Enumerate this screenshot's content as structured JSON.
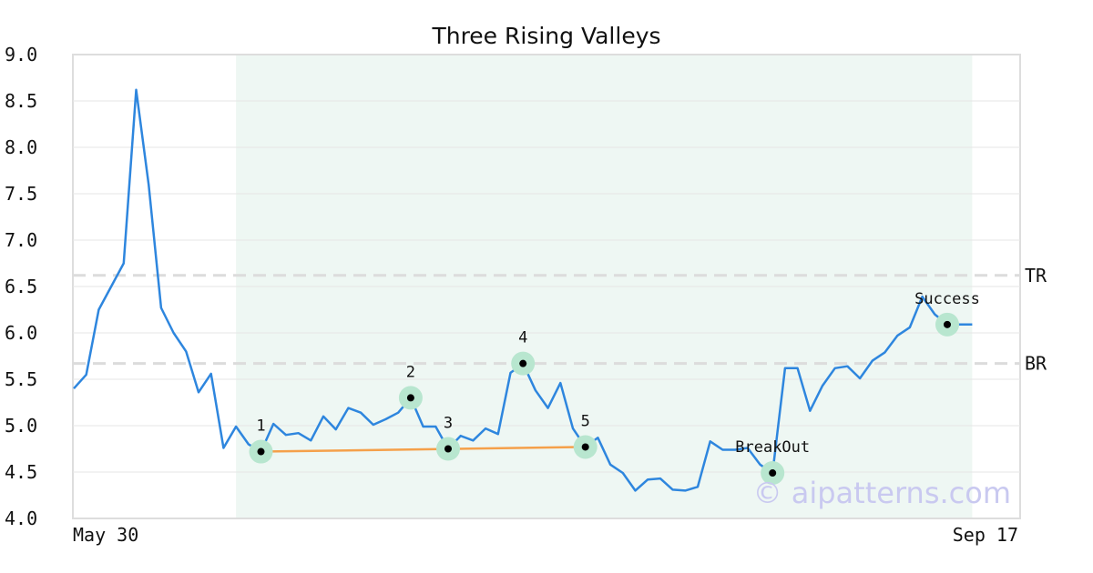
{
  "chart_data": {
    "type": "line",
    "title": "Three Rising Valleys",
    "xlabel": "",
    "ylabel": "",
    "ylim": [
      4.0,
      9.0
    ],
    "yticks": [
      "4.0",
      "4.5",
      "5.0",
      "5.5",
      "6.0",
      "6.5",
      "7.0",
      "7.5",
      "8.0",
      "8.5",
      "9.0"
    ],
    "xticks": [
      {
        "index": 0,
        "label": "May 30"
      },
      {
        "index": 70,
        "label": "Sep 17"
      }
    ],
    "grid": true,
    "series": [
      {
        "values": [
          5.4,
          5.55,
          6.25,
          6.5,
          6.75,
          8.62,
          7.6,
          6.27,
          6.0,
          5.8,
          5.36,
          5.56,
          4.76,
          4.99,
          4.8,
          4.72,
          5.02,
          4.9,
          4.92,
          4.84,
          5.1,
          4.96,
          5.19,
          5.14,
          5.01,
          5.07,
          5.14,
          5.3,
          4.99,
          4.99,
          4.75,
          4.89,
          4.84,
          4.97,
          4.91,
          5.57,
          5.67,
          5.38,
          5.19,
          5.46,
          4.97,
          4.77,
          4.87,
          4.58,
          4.49,
          4.3,
          4.42,
          4.43,
          4.31,
          4.3,
          4.34,
          4.83,
          4.74,
          4.74,
          4.76,
          4.58,
          4.49,
          5.62,
          5.62,
          5.16,
          5.43,
          5.62,
          5.64,
          5.51,
          5.7,
          5.79,
          5.97,
          6.06,
          6.39,
          6.2,
          6.09,
          6.09,
          6.09
        ],
        "color": "#2e86de"
      }
    ],
    "pattern_region": {
      "start_index": 13,
      "end_index": 72,
      "color": "#eef7f3"
    },
    "levels": [
      {
        "label": "TR",
        "value": 6.62
      },
      {
        "label": "BR",
        "value": 5.67
      }
    ],
    "points": [
      {
        "label": "1",
        "index": 15,
        "value": 4.72
      },
      {
        "label": "2",
        "index": 27,
        "value": 5.3
      },
      {
        "label": "3",
        "index": 30,
        "value": 4.75
      },
      {
        "label": "4",
        "index": 36,
        "value": 5.67
      },
      {
        "label": "5",
        "index": 41,
        "value": 4.77
      },
      {
        "label": "BreakOut",
        "index": 56,
        "value": 4.49
      },
      {
        "label": "Success",
        "index": 70,
        "value": 6.09
      }
    ],
    "support_line": {
      "from_index": 15,
      "from_value": 4.72,
      "to_index": 41,
      "to_value": 4.77,
      "color": "#f5a04a"
    },
    "marker_halo_color": "#b8e6cf",
    "level_line_color": "#dcdcdc",
    "grid_color": "#e6e6e6",
    "frame_color": "#dddddd"
  },
  "watermark": {
    "text": "© aipatterns.com",
    "color": "#c9c9f0"
  }
}
